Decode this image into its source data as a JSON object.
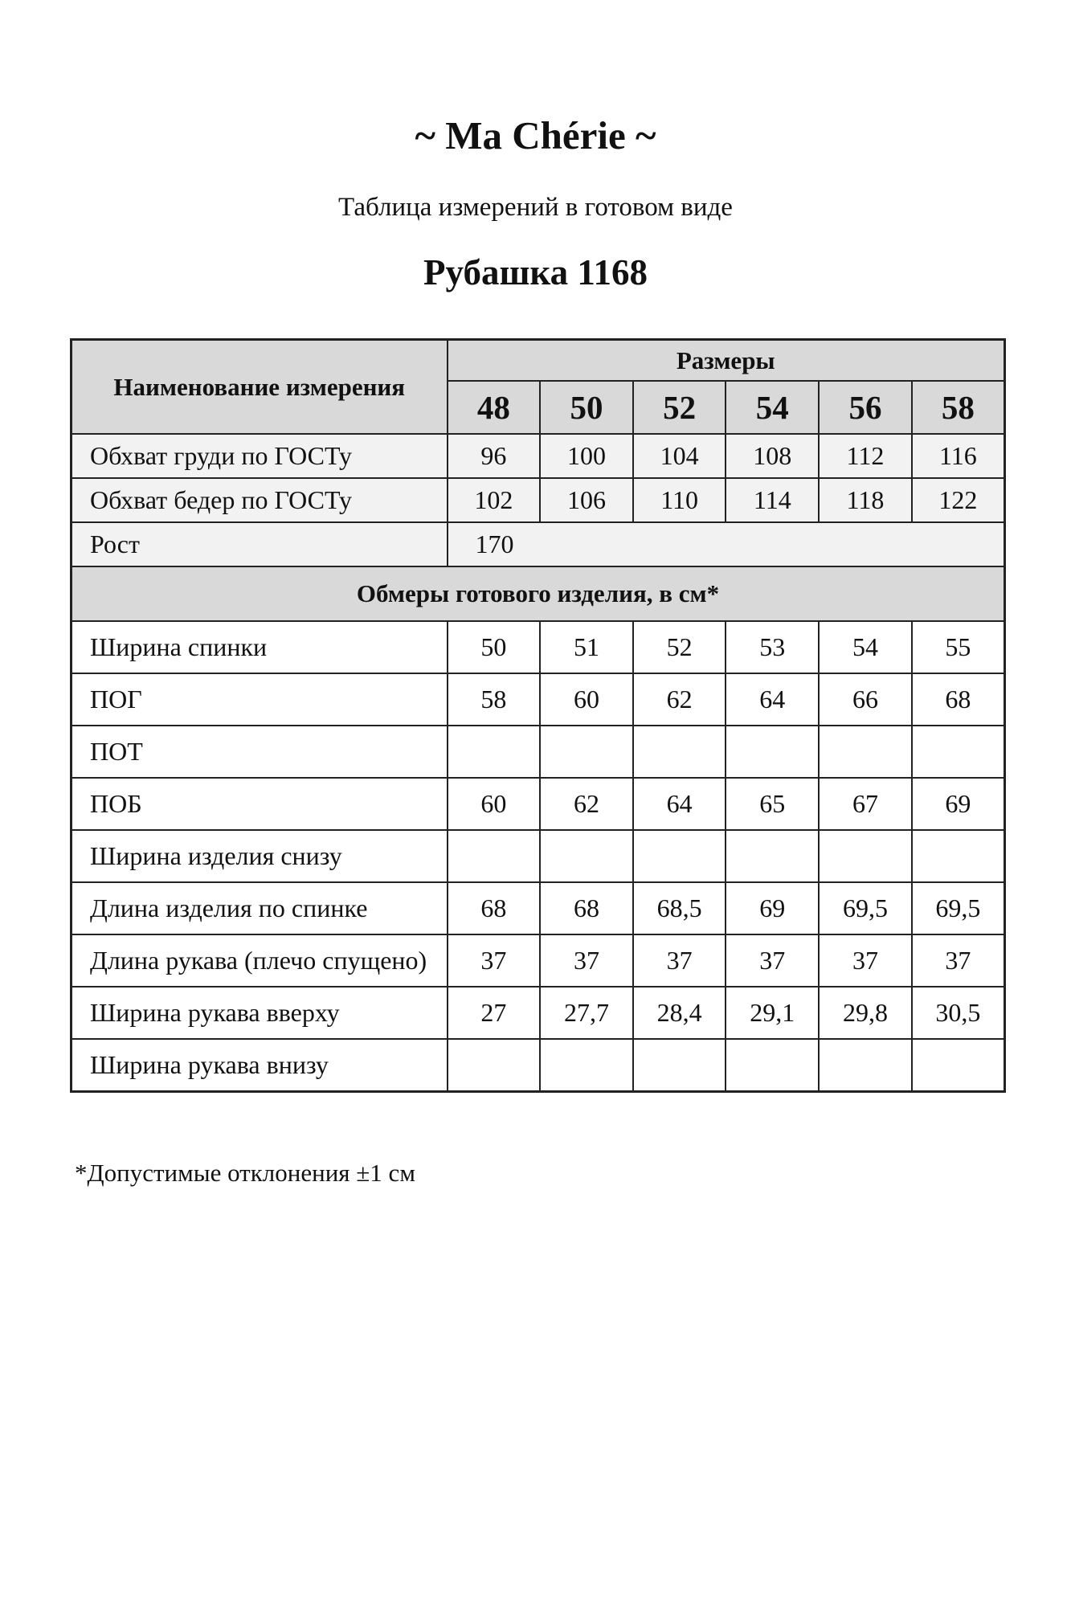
{
  "brand": "~ Ma Chérie ~",
  "subtitle": "Таблица измерений в готовом виде",
  "product_title": "Рубашка 1168",
  "table": {
    "name_header": "Наименование измерения",
    "sizes_header": "Размеры",
    "sizes": [
      "48",
      "50",
      "52",
      "54",
      "56",
      "58"
    ],
    "standard_rows": [
      {
        "name": "Обхват груди по ГОСТу",
        "values": [
          "96",
          "100",
          "104",
          "108",
          "112",
          "116"
        ]
      },
      {
        "name": "Обхват бедер по ГОСТу",
        "values": [
          "102",
          "106",
          "110",
          "114",
          "118",
          "122"
        ]
      }
    ],
    "height_row": {
      "name": "Рост",
      "value": "170"
    },
    "section_header": "Обмеры готового изделия, в см*",
    "rows": [
      {
        "name": "Ширина спинки",
        "values": [
          "50",
          "51",
          "52",
          "53",
          "54",
          "55"
        ]
      },
      {
        "name": "ПОГ",
        "values": [
          "58",
          "60",
          "62",
          "64",
          "66",
          "68"
        ]
      },
      {
        "name": "ПОТ",
        "values": [
          "",
          "",
          "",
          "",
          "",
          ""
        ]
      },
      {
        "name": "ПОБ",
        "values": [
          "60",
          "62",
          "64",
          "65",
          "67",
          "69"
        ]
      },
      {
        "name": "Ширина изделия снизу",
        "values": [
          "",
          "",
          "",
          "",
          "",
          ""
        ]
      },
      {
        "name": "Длина изделия по спинке",
        "values": [
          "68",
          "68",
          "68,5",
          "69",
          "69,5",
          "69,5"
        ]
      },
      {
        "name": "Длина рукава (плечо спущено)",
        "values": [
          "37",
          "37",
          "37",
          "37",
          "37",
          "37"
        ]
      },
      {
        "name": "Ширина рукава вверху",
        "values": [
          "27",
          "27,7",
          "28,4",
          "29,1",
          "29,8",
          "30,5"
        ]
      },
      {
        "name": "Ширина рукава внизу",
        "values": [
          "",
          "",
          "",
          "",
          "",
          ""
        ]
      }
    ]
  },
  "footnote": "*Допустимые отклонения ±1 см",
  "colors": {
    "header_bg": "#d9d9d9",
    "light_row_bg": "#f2f2f2",
    "border": "#222222"
  }
}
